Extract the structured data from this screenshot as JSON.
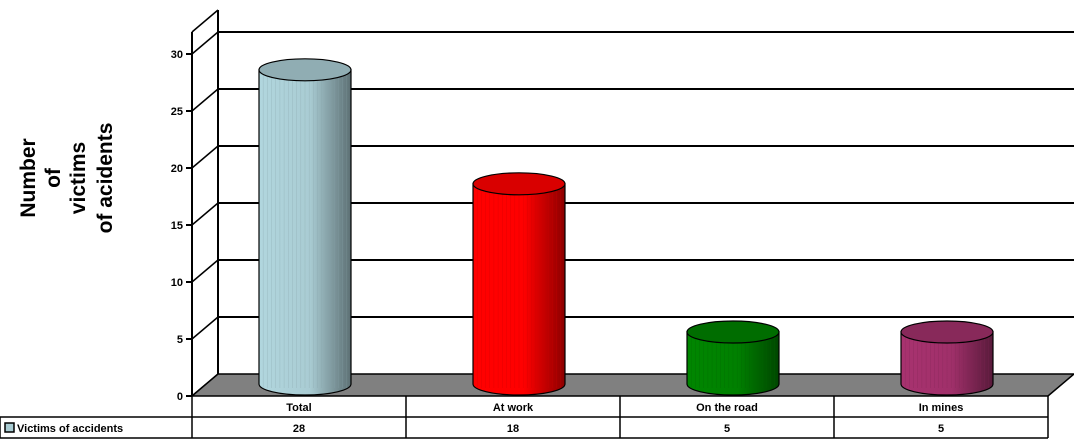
{
  "chart_data": {
    "type": "bar",
    "style": "3d-cylinder",
    "categories": [
      "Total",
      "At work",
      "On the road",
      "In mines"
    ],
    "series": [
      {
        "name": "Victims of accidents",
        "values": [
          28,
          18,
          5,
          5
        ],
        "colors": [
          "#a9ccd3",
          "#ff0000",
          "#008000",
          "#a0306a"
        ]
      }
    ],
    "ylabel_lines": [
      "Number",
      "of",
      "victims",
      "of acidents"
    ],
    "ylim": [
      0,
      30
    ],
    "yticks": [
      "0",
      "5",
      "10",
      "15",
      "20",
      "25",
      "30"
    ],
    "grid": true,
    "data_table": true,
    "legend_key_color": "#a9ccd3",
    "floor_color": "#808080"
  }
}
